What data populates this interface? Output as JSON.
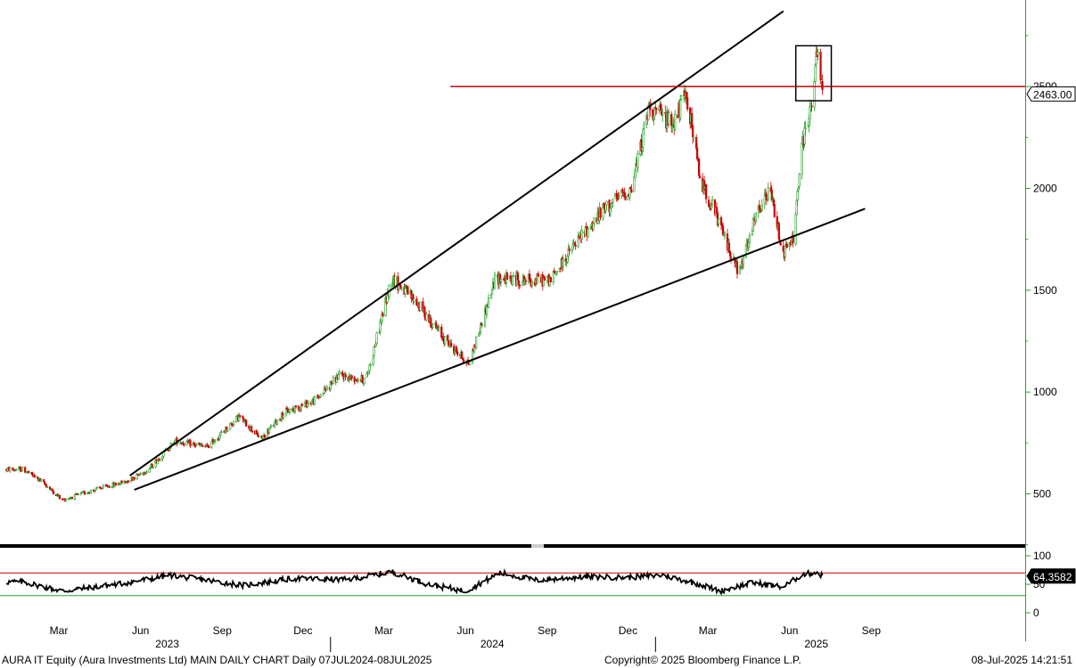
{
  "chart_data": [
    {
      "type": "candlestick",
      "title": "AURA IT Equity (Aura Investments Ltd) MAIN DAILY CHART",
      "ylim": [
        300,
        2900
      ],
      "y_ticks": [
        500,
        1000,
        1500,
        2000,
        2500
      ],
      "y_tick_labels": [
        "500",
        "1000",
        "1500",
        "2000",
        "2500"
      ],
      "last_price": 2463.0,
      "last_price_label": "2463.00",
      "resistance_level": 2500,
      "approx_closes": [
        {
          "date": "2023-01-20",
          "value": 620
        },
        {
          "date": "2023-02-10",
          "value": 560
        },
        {
          "date": "2023-03-05",
          "value": 470
        },
        {
          "date": "2023-04-10",
          "value": 520
        },
        {
          "date": "2023-05-15",
          "value": 560
        },
        {
          "date": "2023-06-10",
          "value": 620
        },
        {
          "date": "2023-07-10",
          "value": 760
        },
        {
          "date": "2023-08-15",
          "value": 730
        },
        {
          "date": "2023-09-20",
          "value": 880
        },
        {
          "date": "2023-10-15",
          "value": 770
        },
        {
          "date": "2023-11-10",
          "value": 900
        },
        {
          "date": "2023-12-15",
          "value": 960
        },
        {
          "date": "2024-01-10",
          "value": 1080
        },
        {
          "date": "2024-02-10",
          "value": 1060
        },
        {
          "date": "2024-03-10",
          "value": 1560
        },
        {
          "date": "2024-04-05",
          "value": 1450
        },
        {
          "date": "2024-05-10",
          "value": 1250
        },
        {
          "date": "2024-06-05",
          "value": 1140
        },
        {
          "date": "2024-07-05",
          "value": 1560
        },
        {
          "date": "2024-08-05",
          "value": 1550
        },
        {
          "date": "2024-09-05",
          "value": 1550
        },
        {
          "date": "2024-10-05",
          "value": 1740
        },
        {
          "date": "2024-11-05",
          "value": 1900
        },
        {
          "date": "2024-12-05",
          "value": 2000
        },
        {
          "date": "2024-12-25",
          "value": 2400
        },
        {
          "date": "2025-01-20",
          "value": 2320
        },
        {
          "date": "2025-02-05",
          "value": 2460
        },
        {
          "date": "2025-02-20",
          "value": 2050
        },
        {
          "date": "2025-03-10",
          "value": 1870
        },
        {
          "date": "2025-04-05",
          "value": 1580
        },
        {
          "date": "2025-04-25",
          "value": 1870
        },
        {
          "date": "2025-05-10",
          "value": 1990
        },
        {
          "date": "2025-05-25",
          "value": 1680
        },
        {
          "date": "2025-06-05",
          "value": 1750
        },
        {
          "date": "2025-06-15",
          "value": 2200
        },
        {
          "date": "2025-06-25",
          "value": 2400
        },
        {
          "date": "2025-07-02",
          "value": 2660
        },
        {
          "date": "2025-07-08",
          "value": 2463
        }
      ],
      "trendlines": [
        {
          "name": "upper",
          "points": [
            {
              "date": "2023-05-20",
              "value": 590
            },
            {
              "date": "2025-05-25",
              "value": 2870
            }
          ]
        },
        {
          "name": "lower",
          "points": [
            {
              "date": "2023-05-25",
              "value": 520
            },
            {
              "date": "2025-08-25",
              "value": 1900
            }
          ]
        }
      ],
      "highlight_box": {
        "from": "2025-06-08",
        "to": "2025-07-18",
        "low": 2430,
        "high": 2700
      }
    },
    {
      "type": "line",
      "title": "",
      "ylim": [
        0,
        100
      ],
      "y_ticks": [
        0,
        50,
        100
      ],
      "y_tick_labels": [
        "0",
        "50",
        "100"
      ],
      "reference_lines": [
        {
          "value": 70,
          "color": "#cc0000"
        },
        {
          "value": 30,
          "color": "#22aa22"
        }
      ],
      "last_value": 64.3582,
      "last_value_label": "64.3582",
      "approx_values": [
        {
          "date": "2023-01-20",
          "value": 54
        },
        {
          "date": "2023-03-05",
          "value": 38
        },
        {
          "date": "2023-05-15",
          "value": 52
        },
        {
          "date": "2023-07-05",
          "value": 66
        },
        {
          "date": "2023-09-25",
          "value": 48
        },
        {
          "date": "2023-11-20",
          "value": 60
        },
        {
          "date": "2024-01-20",
          "value": 58
        },
        {
          "date": "2024-03-10",
          "value": 72
        },
        {
          "date": "2024-04-20",
          "value": 50
        },
        {
          "date": "2024-06-01",
          "value": 38
        },
        {
          "date": "2024-07-10",
          "value": 70
        },
        {
          "date": "2024-08-20",
          "value": 57
        },
        {
          "date": "2024-10-10",
          "value": 63
        },
        {
          "date": "2024-12-01",
          "value": 62
        },
        {
          "date": "2025-01-10",
          "value": 66
        },
        {
          "date": "2025-02-20",
          "value": 50
        },
        {
          "date": "2025-03-15",
          "value": 38
        },
        {
          "date": "2025-04-20",
          "value": 53
        },
        {
          "date": "2025-05-25",
          "value": 45
        },
        {
          "date": "2025-06-15",
          "value": 67
        },
        {
          "date": "2025-07-02",
          "value": 71
        },
        {
          "date": "2025-07-08",
          "value": 64.3582
        }
      ]
    }
  ],
  "x_axis": {
    "month_ticks": [
      {
        "label": "Mar",
        "date": "2023-03-01"
      },
      {
        "label": "Jun",
        "date": "2023-06-01"
      },
      {
        "label": "Sep",
        "date": "2023-09-01"
      },
      {
        "label": "Dec",
        "date": "2023-12-01"
      },
      {
        "label": "Mar",
        "date": "2024-03-01"
      },
      {
        "label": "Jun",
        "date": "2024-06-01"
      },
      {
        "label": "Sep",
        "date": "2024-09-01"
      },
      {
        "label": "Dec",
        "date": "2024-12-01"
      },
      {
        "label": "Mar",
        "date": "2025-03-01"
      },
      {
        "label": "Jun",
        "date": "2025-06-01"
      },
      {
        "label": "Sep",
        "date": "2025-09-01"
      }
    ],
    "year_ticks": [
      {
        "label": "2023",
        "date": "2023-06-01"
      },
      {
        "label": "2024",
        "date": "2024-06-01"
      },
      {
        "label": "2025",
        "date": "2025-06-01"
      }
    ]
  },
  "colors": {
    "up_candle": "#1a9e1a",
    "down_candle": "#cc0000",
    "trendline": "#000000",
    "resistance": "#cc0000",
    "axis": "#22aa22",
    "separator": "#000000"
  },
  "footer": {
    "left": "AURA IT Equity (Aura Investments Ltd) MAIN DAILY CHART  Daily 07JUL2024-08JUL2025",
    "center": "Copyright© 2025 Bloomberg Finance L.P.",
    "right": "08-Jul-2025 14:21:51"
  }
}
